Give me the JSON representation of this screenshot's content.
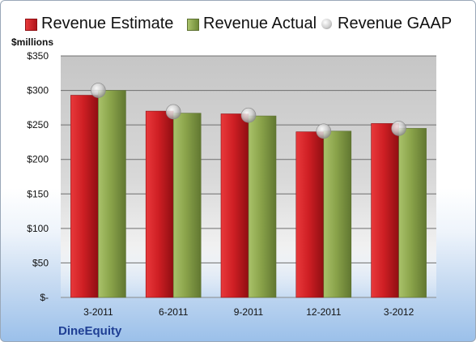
{
  "chart_data": {
    "type": "bar",
    "categories": [
      "3-2011",
      "6-2011",
      "9-2011",
      "12-2011",
      "3-2012"
    ],
    "series": [
      {
        "name": "Revenue Estimate",
        "marker": "bar",
        "color": "#c0181e",
        "values": [
          293,
          270,
          266,
          240,
          252
        ]
      },
      {
        "name": "Revenue Actual",
        "marker": "bar",
        "color": "#8aa34a",
        "values": [
          300,
          267,
          263,
          241,
          245
        ]
      },
      {
        "name": "Revenue GAAP",
        "marker": "circle",
        "color": "#c8c8c8",
        "values": [
          300,
          269,
          264,
          241,
          245
        ]
      }
    ],
    "ylabel": "$millions",
    "ylim": [
      0,
      350
    ],
    "yticks": [
      0,
      50,
      100,
      150,
      200,
      250,
      300,
      350
    ],
    "ytick_labels": [
      "$-",
      "$50",
      "$100",
      "$150",
      "$200",
      "$250",
      "$300",
      "$350"
    ],
    "grid": true,
    "legend": "top",
    "company": "DineEquity"
  }
}
